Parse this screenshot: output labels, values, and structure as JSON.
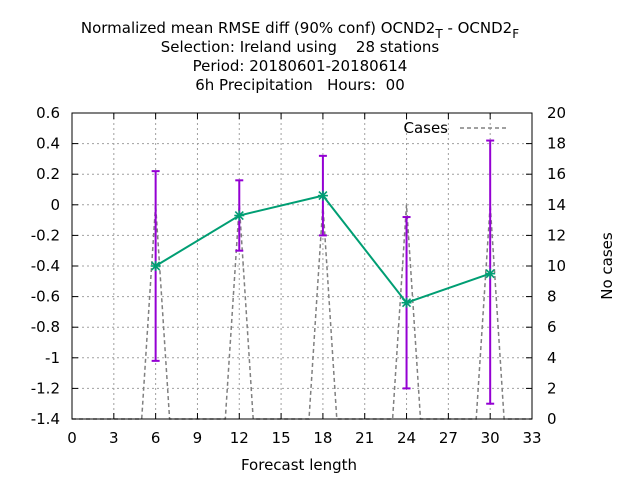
{
  "chart_data": {
    "type": "line",
    "title_lines": [
      {
        "text": "Normalized mean RMSE diff (90% conf) OCND2",
        "sub1": "T",
        "mid": " - OCND2",
        "sub2": "F"
      },
      {
        "text": "Selection: Ireland using    28 stations"
      },
      {
        "text": "Period: 20180601-20180614"
      },
      {
        "text": "6h Precipitation   Hours:  00"
      }
    ],
    "xlabel": "Forecast length",
    "ylabel": "",
    "y2label": "No cases",
    "xlim": [
      0,
      33
    ],
    "ylim": [
      -1.4,
      0.6
    ],
    "y2lim": [
      0,
      20
    ],
    "xticks": [
      "0",
      "3",
      "6",
      "9",
      "12",
      "15",
      "18",
      "21",
      "24",
      "27",
      "30",
      "33"
    ],
    "yticks": [
      "-1.4",
      "-1.2",
      "-1",
      "-0.8",
      "-0.6",
      "-0.4",
      "-0.2",
      "0",
      "0.2",
      "0.4",
      "0.6"
    ],
    "y2ticks": [
      "0",
      "2",
      "4",
      "6",
      "8",
      "10",
      "12",
      "14",
      "16",
      "18",
      "20"
    ],
    "grid": true,
    "legend": {
      "position": "top-right",
      "entries": [
        "Cases"
      ]
    },
    "series": [
      {
        "name": "RMSE diff",
        "color": "#009e73",
        "x": [
          6,
          12,
          18,
          24,
          30
        ],
        "y": [
          -0.4,
          -0.07,
          0.06,
          -0.64,
          -0.45
        ],
        "err_low": [
          -1.02,
          -0.3,
          -0.2,
          -1.2,
          -1.3
        ],
        "err_high": [
          0.22,
          0.16,
          0.32,
          -0.08,
          0.42
        ],
        "err_color": "#9400d3"
      },
      {
        "name": "Cases",
        "color": "#808080",
        "axis": "y2",
        "x": [
          0,
          1,
          2,
          3,
          4,
          5,
          6,
          7,
          8,
          9,
          10,
          11,
          12,
          13,
          14,
          15,
          16,
          17,
          18,
          19,
          20,
          21,
          22,
          23,
          24,
          25,
          26,
          27,
          28,
          29,
          30,
          31,
          32,
          33
        ],
        "values": [
          0,
          0,
          0,
          0,
          0,
          0,
          14,
          0,
          0,
          0,
          0,
          0,
          14,
          0,
          0,
          0,
          0,
          0,
          14,
          0,
          0,
          0,
          0,
          0,
          14,
          0,
          0,
          0,
          0,
          0,
          14,
          0,
          0,
          0
        ]
      }
    ]
  }
}
